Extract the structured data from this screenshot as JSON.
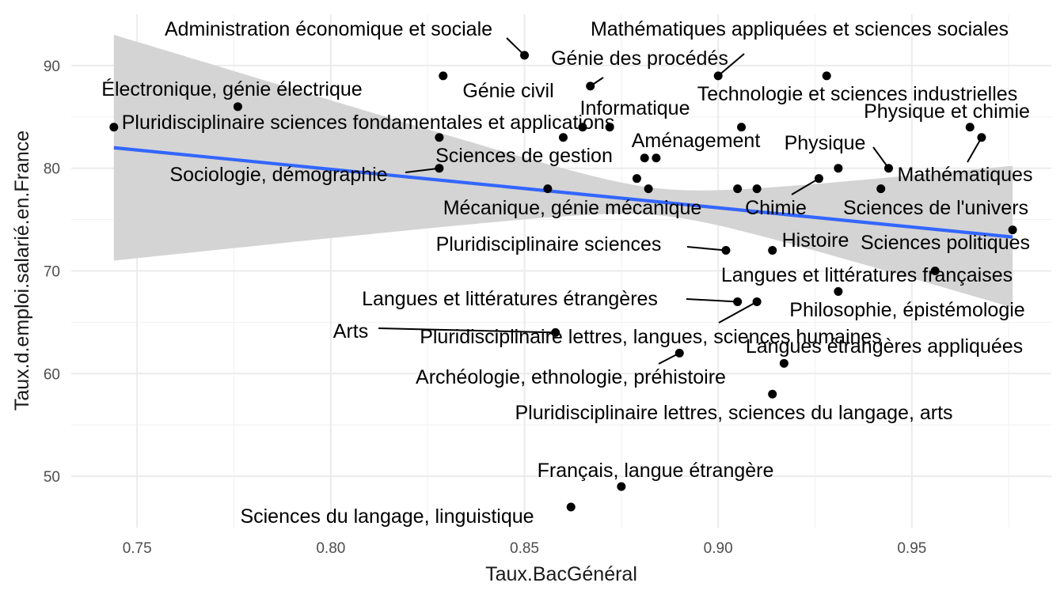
{
  "chart_data": {
    "type": "scatter",
    "title": "",
    "xlabel": "Taux.BacGénéral",
    "ylabel": "Taux.d.emploi.salarié.en.France",
    "xlim": [
      0.733,
      0.986
    ],
    "ylim": [
      45,
      95
    ],
    "x_ticks": [
      0.75,
      0.8,
      0.85,
      0.9,
      0.95
    ],
    "x_tick_labels": [
      "0.75",
      "0.80",
      "0.85",
      "0.90",
      "0.95"
    ],
    "y_ticks": [
      50,
      60,
      70,
      80,
      90
    ],
    "y_tick_labels": [
      "50",
      "60",
      "70",
      "80",
      "90"
    ],
    "grid": true,
    "regression": {
      "method": "lm",
      "x_range": [
        0.744,
        0.976
      ],
      "y_start": 82.0,
      "y_end": 73.3,
      "se_lower_start": 71.0,
      "se_upper_start": 93.0,
      "se_lower_end": 66.5,
      "se_upper_end": 80.3,
      "line_color": "#3366ff",
      "band_color": "#d4d4d4"
    },
    "points": [
      {
        "x": 0.744,
        "y": 84,
        "label": "Pluridisciplinaire sciences fondamentales et applications"
      },
      {
        "x": 0.776,
        "y": 86,
        "label": "Électronique, génie électrique"
      },
      {
        "x": 0.828,
        "y": 83,
        "label": ""
      },
      {
        "x": 0.829,
        "y": 89,
        "label": "Génie civil"
      },
      {
        "x": 0.828,
        "y": 80,
        "label": "Sociologie, démographie"
      },
      {
        "x": 0.85,
        "y": 91,
        "label": "Administration économique et sociale"
      },
      {
        "x": 0.856,
        "y": 78,
        "label": "Mécanique, génie mécanique"
      },
      {
        "x": 0.858,
        "y": 64,
        "label": "Arts"
      },
      {
        "x": 0.86,
        "y": 83,
        "label": "Sciences de gestion"
      },
      {
        "x": 0.862,
        "y": 47,
        "label": "Sciences du langage, linguistique"
      },
      {
        "x": 0.867,
        "y": 88,
        "label": "Génie des procédés"
      },
      {
        "x": 0.865,
        "y": 84,
        "label": "Informatique"
      },
      {
        "x": 0.872,
        "y": 84,
        "label": ""
      },
      {
        "x": 0.875,
        "y": 49,
        "label": "Français, langue étrangère"
      },
      {
        "x": 0.879,
        "y": 79,
        "label": ""
      },
      {
        "x": 0.881,
        "y": 81,
        "label": ""
      },
      {
        "x": 0.882,
        "y": 78,
        "label": ""
      },
      {
        "x": 0.884,
        "y": 81,
        "label": "Aménagement"
      },
      {
        "x": 0.89,
        "y": 62,
        "label": "Archéologie, ethnologie, préhistoire"
      },
      {
        "x": 0.9,
        "y": 89,
        "label": "Mathématiques appliquées et sciences sociales"
      },
      {
        "x": 0.902,
        "y": 72,
        "label": "Pluridisciplinaire sciences"
      },
      {
        "x": 0.905,
        "y": 67,
        "label": "Langues et littératures étrangères"
      },
      {
        "x": 0.905,
        "y": 78,
        "label": ""
      },
      {
        "x": 0.906,
        "y": 84,
        "label": ""
      },
      {
        "x": 0.91,
        "y": 67,
        "label": "Pluridisciplinaire lettres, langues, sciences humaines"
      },
      {
        "x": 0.91,
        "y": 78,
        "label": ""
      },
      {
        "x": 0.914,
        "y": 72,
        "label": "Histoire"
      },
      {
        "x": 0.914,
        "y": 58,
        "label": "Pluridisciplinaire lettres, sciences du langage, arts"
      },
      {
        "x": 0.917,
        "y": 61,
        "label": "Langues étrangères appliquées"
      },
      {
        "x": 0.926,
        "y": 79,
        "label": "Chimie"
      },
      {
        "x": 0.928,
        "y": 89,
        "label": "Technologie et sciences industrielles"
      },
      {
        "x": 0.931,
        "y": 80,
        "label": ""
      },
      {
        "x": 0.931,
        "y": 68,
        "label": "Philosophie, épistémologie"
      },
      {
        "x": 0.942,
        "y": 78,
        "label": "Sciences de l'univers"
      },
      {
        "x": 0.944,
        "y": 80,
        "label": "Physique"
      },
      {
        "x": 0.956,
        "y": 70,
        "label": "Langues et littératures françaises"
      },
      {
        "x": 0.965,
        "y": 84,
        "label": "Physique et chimie"
      },
      {
        "x": 0.968,
        "y": 83,
        "label": "Mathématiques"
      },
      {
        "x": 0.976,
        "y": 74,
        "label": "Sciences politiques"
      }
    ]
  }
}
